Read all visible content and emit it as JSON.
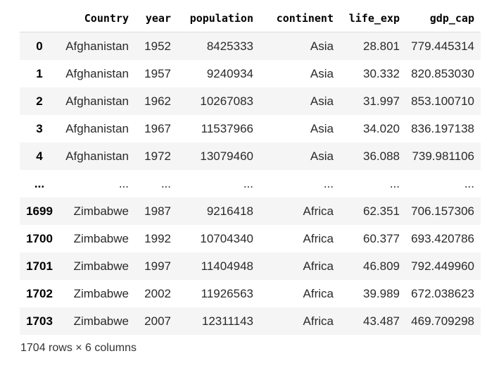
{
  "table": {
    "columns": [
      "",
      "Country",
      "year",
      "population",
      "continent",
      "life_exp",
      "gdp_cap"
    ],
    "rows": [
      {
        "index": "0",
        "cells": [
          "Afghanistan",
          "1952",
          "8425333",
          "Asia",
          "28.801",
          "779.445314"
        ]
      },
      {
        "index": "1",
        "cells": [
          "Afghanistan",
          "1957",
          "9240934",
          "Asia",
          "30.332",
          "820.853030"
        ]
      },
      {
        "index": "2",
        "cells": [
          "Afghanistan",
          "1962",
          "10267083",
          "Asia",
          "31.997",
          "853.100710"
        ]
      },
      {
        "index": "3",
        "cells": [
          "Afghanistan",
          "1967",
          "11537966",
          "Asia",
          "34.020",
          "836.197138"
        ]
      },
      {
        "index": "4",
        "cells": [
          "Afghanistan",
          "1972",
          "13079460",
          "Asia",
          "36.088",
          "739.981106"
        ]
      },
      {
        "index": "...",
        "cells": [
          "...",
          "...",
          "...",
          "...",
          "...",
          "..."
        ]
      },
      {
        "index": "1699",
        "cells": [
          "Zimbabwe",
          "1987",
          "9216418",
          "Africa",
          "62.351",
          "706.157306"
        ]
      },
      {
        "index": "1700",
        "cells": [
          "Zimbabwe",
          "1992",
          "10704340",
          "Africa",
          "60.377",
          "693.420786"
        ]
      },
      {
        "index": "1701",
        "cells": [
          "Zimbabwe",
          "1997",
          "11404948",
          "Africa",
          "46.809",
          "792.449960"
        ]
      },
      {
        "index": "1702",
        "cells": [
          "Zimbabwe",
          "2002",
          "11926563",
          "Africa",
          "39.989",
          "672.038623"
        ]
      },
      {
        "index": "1703",
        "cells": [
          "Zimbabwe",
          "2007",
          "12311143",
          "Africa",
          "43.487",
          "469.709298"
        ]
      }
    ]
  },
  "caption": "1704 rows × 6 columns",
  "colors": {
    "stripe": "#f5f5f5",
    "header_rule": "#dcdcdc"
  }
}
